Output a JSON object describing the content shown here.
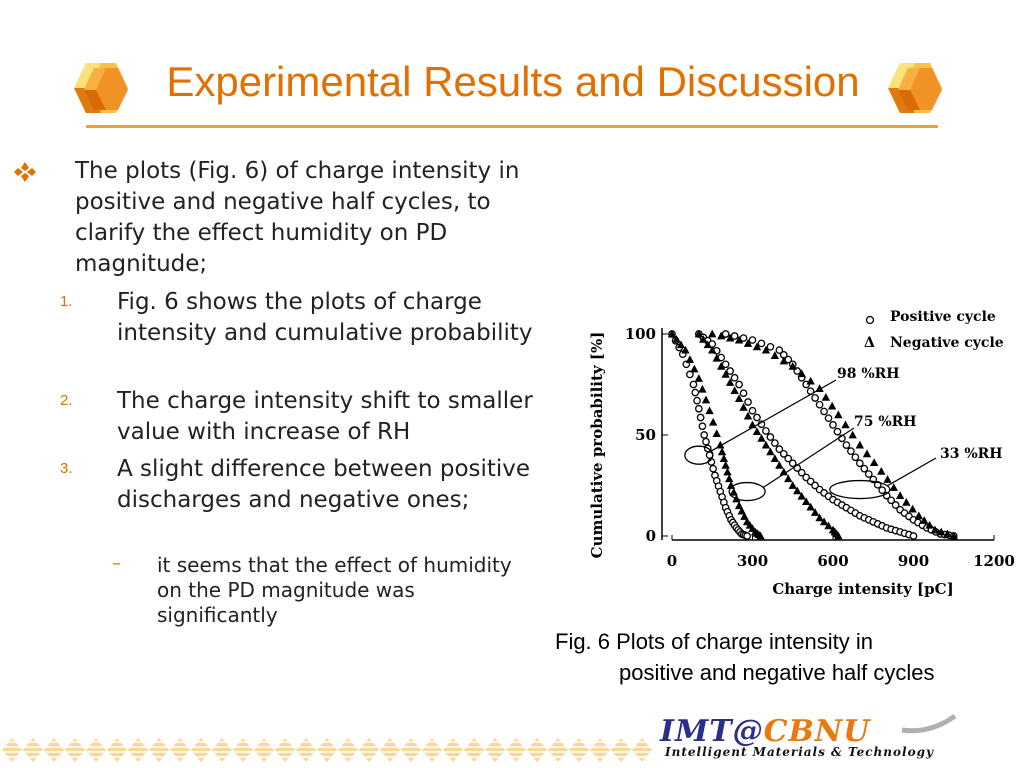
{
  "title": "Experimental Results and Discussion",
  "bullet": {
    "text": "The plots (Fig. 6) of charge intensity in positive and negative half cycles, to clarify the effect humidity on PD magnitude;"
  },
  "items": [
    {
      "num": "1.",
      "text": "Fig. 6 shows the plots of charge intensity and cumulative probability"
    },
    {
      "num": "2.",
      "text": "The charge intensity shift to smaller value with increase of RH"
    },
    {
      "num": "3.",
      "text": "A slight difference between positive discharges and negative ones;"
    }
  ],
  "subitem": {
    "dash": "–",
    "text": "it seems that the effect of humidity on the PD magnitude was significantly"
  },
  "caption": {
    "line1": "Fig. 6 Plots of charge intensity in",
    "line2": "positive and negative half cycles"
  },
  "logo": {
    "imt": "IMT",
    "at": "@",
    "cbnu": "CBNU",
    "tagline": "Intelligent Materials & Technology"
  },
  "colors": {
    "accent": "#E07000",
    "rule": "#F0A030",
    "logo_blue": "#2A2D8A",
    "logo_orange": "#E87A10"
  },
  "chart_data": {
    "type": "scatter",
    "xlabel": "Charge intensity [pC]",
    "ylabel": "Cumulative probability [%]",
    "xlim": [
      0,
      1200
    ],
    "ylim": [
      0,
      100
    ],
    "x_ticks": [
      "0",
      "300",
      "600",
      "900",
      "1200"
    ],
    "y_ticks": [
      "0",
      "50",
      "100"
    ],
    "legend": {
      "placement": "top-right",
      "entries": [
        {
          "marker": "o",
          "label": "Positive cycle"
        },
        {
          "marker": "Δ",
          "label": "Negative cycle"
        }
      ]
    },
    "annotations": [
      "98 %RH",
      "75 %RH",
      "33 %RH"
    ],
    "series": [
      {
        "marker": "circle",
        "group": "98 %RH",
        "x": [
          0,
          40,
          80,
          100,
          120,
          140,
          160,
          180,
          200,
          220,
          240,
          260,
          280
        ],
        "y": [
          100,
          90,
          75,
          63,
          50,
          40,
          30,
          22,
          14,
          8,
          4,
          1,
          0
        ]
      },
      {
        "marker": "triangle",
        "group": "98 %RH",
        "x": [
          0,
          50,
          100,
          140,
          180,
          200,
          220,
          250,
          280,
          310,
          330
        ],
        "y": [
          100,
          92,
          78,
          62,
          45,
          35,
          25,
          15,
          7,
          2,
          0
        ]
      },
      {
        "marker": "circle",
        "group": "75 %RH",
        "x": [
          100,
          150,
          200,
          250,
          300,
          350,
          400,
          450,
          500,
          550,
          600,
          650,
          700,
          750,
          800,
          850,
          900
        ],
        "y": [
          100,
          95,
          85,
          75,
          62,
          52,
          43,
          36,
          29,
          23,
          18,
          14,
          10,
          7,
          4,
          2,
          0
        ]
      },
      {
        "marker": "triangle",
        "group": "75 %RH",
        "x": [
          100,
          150,
          200,
          250,
          300,
          350,
          400,
          450,
          500,
          550,
          600,
          620
        ],
        "y": [
          100,
          92,
          80,
          68,
          55,
          45,
          35,
          25,
          17,
          9,
          3,
          0
        ]
      },
      {
        "marker": "circle",
        "group": "33 %RH",
        "x": [
          200,
          300,
          400,
          450,
          500,
          550,
          600,
          650,
          700,
          750,
          800,
          850,
          900,
          950,
          1000,
          1050
        ],
        "y": [
          100,
          97,
          92,
          85,
          75,
          65,
          55,
          45,
          36,
          28,
          20,
          13,
          8,
          4,
          1,
          0
        ]
      },
      {
        "marker": "triangle",
        "group": "33 %RH",
        "x": [
          150,
          250,
          350,
          450,
          550,
          620,
          700,
          780,
          850,
          920,
          980,
          1050
        ],
        "y": [
          100,
          97,
          92,
          84,
          73,
          60,
          45,
          32,
          20,
          10,
          3,
          0
        ]
      }
    ]
  }
}
